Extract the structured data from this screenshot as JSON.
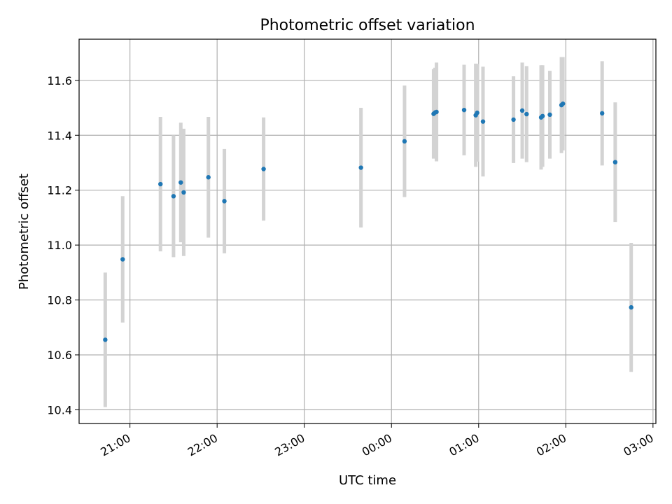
{
  "chart_data": {
    "type": "scatter",
    "title": "Photometric offset variation",
    "xlabel": "UTC time",
    "ylabel": "Photometric offset",
    "x_tick_labels": [
      "21:00",
      "22:00",
      "23:00",
      "00:00",
      "01:00",
      "02:00",
      "03:00"
    ],
    "y_tick_labels": [
      "10.4",
      "10.6",
      "10.8",
      "11.0",
      "11.2",
      "11.4",
      "11.6"
    ],
    "xlim": [
      "20:25",
      "03:02"
    ],
    "ylim": [
      10.35,
      11.75
    ],
    "grid": true,
    "point_color": "#1f77b4",
    "errorbar_color": "#d3d3d3",
    "points": [
      {
        "x": "20:43",
        "y": 10.655,
        "err": 0.245
      },
      {
        "x": "20:55",
        "y": 10.948,
        "err": 0.23
      },
      {
        "x": "21:21",
        "y": 11.222,
        "err": 0.245
      },
      {
        "x": "21:30",
        "y": 11.178,
        "err": 0.222
      },
      {
        "x": "21:35",
        "y": 11.228,
        "err": 0.218
      },
      {
        "x": "21:37",
        "y": 11.192,
        "err": 0.232
      },
      {
        "x": "21:54",
        "y": 11.247,
        "err": 0.22
      },
      {
        "x": "22:05",
        "y": 11.16,
        "err": 0.19
      },
      {
        "x": "22:32",
        "y": 11.277,
        "err": 0.188
      },
      {
        "x": "23:39",
        "y": 11.282,
        "err": 0.218
      },
      {
        "x": "00:09",
        "y": 11.378,
        "err": 0.203
      },
      {
        "x": "00:29",
        "y": 11.478,
        "err": 0.163
      },
      {
        "x": "00:30",
        "y": 11.483,
        "err": 0.163
      },
      {
        "x": "00:31",
        "y": 11.485,
        "err": 0.18
      },
      {
        "x": "00:50",
        "y": 11.492,
        "err": 0.165
      },
      {
        "x": "00:58",
        "y": 11.473,
        "err": 0.188
      },
      {
        "x": "00:59",
        "y": 11.482,
        "err": 0.178
      },
      {
        "x": "01:03",
        "y": 11.45,
        "err": 0.2
      },
      {
        "x": "01:24",
        "y": 11.457,
        "err": 0.158
      },
      {
        "x": "01:30",
        "y": 11.49,
        "err": 0.175
      },
      {
        "x": "01:33",
        "y": 11.477,
        "err": 0.175
      },
      {
        "x": "01:43",
        "y": 11.465,
        "err": 0.19
      },
      {
        "x": "01:44",
        "y": 11.47,
        "err": 0.185
      },
      {
        "x": "01:49",
        "y": 11.475,
        "err": 0.16
      },
      {
        "x": "01:57",
        "y": 11.51,
        "err": 0.175
      },
      {
        "x": "01:58",
        "y": 11.515,
        "err": 0.17
      },
      {
        "x": "02:25",
        "y": 11.48,
        "err": 0.19
      },
      {
        "x": "02:34",
        "y": 11.302,
        "err": 0.218
      },
      {
        "x": "02:45",
        "y": 10.773,
        "err": 0.235
      }
    ]
  }
}
